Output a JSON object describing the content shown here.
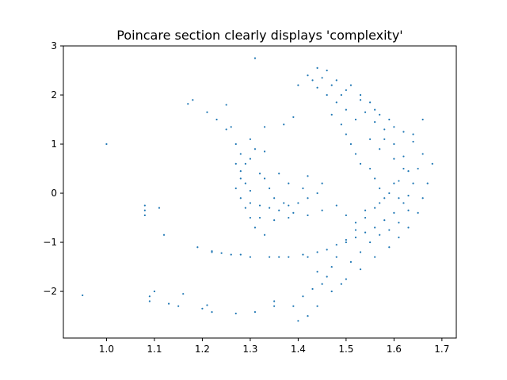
{
  "chart_data": {
    "type": "scatter",
    "title": "Poincare section clearly displays 'complexity'",
    "xlabel": "",
    "ylabel": "",
    "xlim": [
      0.91,
      1.73
    ],
    "ylim": [
      -2.95,
      3.0
    ],
    "x_ticks": [
      1.0,
      1.1,
      1.2,
      1.3,
      1.4,
      1.5,
      1.6,
      1.7
    ],
    "x_tick_labels": [
      "1.0",
      "1.1",
      "1.2",
      "1.3",
      "1.4",
      "1.5",
      "1.6",
      "1.7"
    ],
    "y_ticks": [
      -2,
      -1,
      0,
      1,
      2,
      3
    ],
    "y_tick_labels": [
      "−2",
      "−1",
      "0",
      "1",
      "2",
      "3"
    ],
    "grid": false,
    "legend": "none",
    "marker_color": "#1f77b4",
    "points": [
      [
        0.95,
        -2.08
      ],
      [
        1.0,
        1.0
      ],
      [
        1.08,
        -0.25
      ],
      [
        1.08,
        -0.35
      ],
      [
        1.08,
        -0.45
      ],
      [
        1.09,
        -2.1
      ],
      [
        1.09,
        -2.2
      ],
      [
        1.1,
        -2.0
      ],
      [
        1.11,
        -0.3
      ],
      [
        1.12,
        -0.85
      ],
      [
        1.13,
        -2.25
      ],
      [
        1.15,
        -2.3
      ],
      [
        1.16,
        -2.05
      ],
      [
        1.17,
        1.82
      ],
      [
        1.18,
        1.9
      ],
      [
        1.19,
        -1.1
      ],
      [
        1.2,
        -2.35
      ],
      [
        1.21,
        -2.28
      ],
      [
        1.21,
        1.65
      ],
      [
        1.22,
        -1.2
      ],
      [
        1.23,
        1.5
      ],
      [
        1.25,
        1.3
      ],
      [
        1.26,
        1.35
      ],
      [
        1.25,
        1.8
      ],
      [
        1.27,
        1.0
      ],
      [
        1.28,
        0.8
      ],
      [
        1.29,
        0.6
      ],
      [
        1.28,
        0.3
      ],
      [
        1.27,
        0.1
      ],
      [
        1.29,
        -0.3
      ],
      [
        1.3,
        -0.5
      ],
      [
        1.31,
        -0.7
      ],
      [
        1.33,
        -0.85
      ],
      [
        1.31,
        0.9
      ],
      [
        1.33,
        0.85
      ],
      [
        1.32,
        0.4
      ],
      [
        1.34,
        0.1
      ],
      [
        1.35,
        -0.1
      ],
      [
        1.37,
        -0.2
      ],
      [
        1.38,
        -0.25
      ],
      [
        1.4,
        -0.2
      ],
      [
        1.42,
        -0.1
      ],
      [
        1.44,
        0.0
      ],
      [
        1.42,
        0.35
      ],
      [
        1.45,
        0.2
      ],
      [
        1.34,
        -1.3
      ],
      [
        1.36,
        -1.3
      ],
      [
        1.38,
        -1.3
      ],
      [
        1.41,
        -1.25
      ],
      [
        1.44,
        -1.2
      ],
      [
        1.46,
        -1.15
      ],
      [
        1.48,
        -1.05
      ],
      [
        1.5,
        -0.95
      ],
      [
        1.52,
        -0.9
      ],
      [
        1.54,
        -0.8
      ],
      [
        1.56,
        -0.7
      ],
      [
        1.58,
        -0.55
      ],
      [
        1.6,
        -0.4
      ],
      [
        1.62,
        -0.2
      ],
      [
        1.63,
        -0.05
      ],
      [
        1.64,
        0.2
      ],
      [
        1.65,
        0.5
      ],
      [
        1.66,
        0.8
      ],
      [
        1.64,
        1.05
      ],
      [
        1.62,
        1.25
      ],
      [
        1.59,
        1.5
      ],
      [
        1.56,
        1.7
      ],
      [
        1.53,
        1.9
      ],
      [
        1.5,
        2.1
      ],
      [
        1.48,
        2.3
      ],
      [
        1.46,
        2.5
      ],
      [
        1.44,
        2.55
      ],
      [
        1.42,
        2.4
      ],
      [
        1.4,
        2.2
      ],
      [
        1.47,
        1.6
      ],
      [
        1.49,
        1.4
      ],
      [
        1.5,
        1.2
      ],
      [
        1.51,
        1.0
      ],
      [
        1.52,
        0.8
      ],
      [
        1.53,
        0.6
      ],
      [
        1.55,
        0.5
      ],
      [
        1.56,
        0.3
      ],
      [
        1.57,
        0.1
      ],
      [
        1.58,
        -0.1
      ],
      [
        1.56,
        -0.3
      ],
      [
        1.54,
        -0.5
      ],
      [
        1.52,
        -0.75
      ],
      [
        1.5,
        -1.0
      ],
      [
        1.48,
        -1.3
      ],
      [
        1.47,
        -1.5
      ],
      [
        1.46,
        -1.7
      ],
      [
        1.45,
        -1.85
      ],
      [
        1.43,
        -1.95
      ],
      [
        1.41,
        -2.1
      ],
      [
        1.39,
        -2.3
      ],
      [
        1.4,
        -2.6
      ],
      [
        1.42,
        -2.5
      ],
      [
        1.44,
        -2.3
      ],
      [
        1.47,
        -2.0
      ],
      [
        1.5,
        -1.75
      ],
      [
        1.53,
        -1.55
      ],
      [
        1.56,
        -1.3
      ],
      [
        1.59,
        -1.1
      ],
      [
        1.61,
        -0.9
      ],
      [
        1.63,
        -0.7
      ],
      [
        1.65,
        -0.4
      ],
      [
        1.66,
        -0.1
      ],
      [
        1.67,
        0.2
      ],
      [
        1.68,
        0.6
      ],
      [
        1.66,
        1.5
      ],
      [
        1.55,
        1.1
      ],
      [
        1.57,
        0.9
      ],
      [
        1.6,
        0.7
      ],
      [
        1.62,
        0.5
      ],
      [
        1.6,
        0.2
      ],
      [
        1.61,
        -0.1
      ],
      [
        1.63,
        -0.35
      ],
      [
        1.58,
        1.3
      ],
      [
        1.49,
        2.0
      ],
      [
        1.47,
        2.2
      ],
      [
        1.3,
        -1.3
      ],
      [
        1.28,
        -1.25
      ],
      [
        1.26,
        -1.25
      ],
      [
        1.24,
        -1.22
      ],
      [
        1.22,
        -1.18
      ],
      [
        1.32,
        -0.5
      ],
      [
        1.35,
        -0.55
      ],
      [
        1.38,
        -0.5
      ],
      [
        1.42,
        -0.45
      ],
      [
        1.45,
        -0.35
      ],
      [
        1.48,
        -0.25
      ],
      [
        1.3,
        0.05
      ],
      [
        1.33,
        0.3
      ],
      [
        1.36,
        0.4
      ],
      [
        1.38,
        0.2
      ],
      [
        1.41,
        0.1
      ],
      [
        1.3,
        1.1
      ],
      [
        1.33,
        1.35
      ],
      [
        1.37,
        1.4
      ],
      [
        1.39,
        1.55
      ],
      [
        1.35,
        -2.2
      ],
      [
        1.31,
        2.75
      ],
      [
        1.22,
        -2.42
      ],
      [
        1.27,
        -2.45
      ],
      [
        1.31,
        -2.42
      ],
      [
        1.35,
        -2.3
      ],
      [
        1.42,
        -1.3
      ],
      [
        1.44,
        -1.6
      ],
      [
        1.49,
        -1.85
      ],
      [
        1.51,
        -1.4
      ],
      [
        1.53,
        -1.2
      ],
      [
        1.55,
        -1.0
      ],
      [
        1.57,
        -0.85
      ],
      [
        1.59,
        -0.75
      ],
      [
        1.61,
        -0.6
      ],
      [
        1.52,
        -0.6
      ],
      [
        1.5,
        -0.45
      ],
      [
        1.54,
        -0.35
      ],
      [
        1.57,
        -0.2
      ],
      [
        1.59,
        0.0
      ],
      [
        1.61,
        0.25
      ],
      [
        1.63,
        0.45
      ],
      [
        1.62,
        0.75
      ],
      [
        1.6,
        1.0
      ],
      [
        1.58,
        1.1
      ],
      [
        1.56,
        1.45
      ],
      [
        1.54,
        1.65
      ],
      [
        1.52,
        1.5
      ],
      [
        1.5,
        1.7
      ],
      [
        1.48,
        1.85
      ],
      [
        1.46,
        2.0
      ],
      [
        1.44,
        2.15
      ],
      [
        1.43,
        2.3
      ],
      [
        1.45,
        2.35
      ],
      [
        1.51,
        2.2
      ],
      [
        1.53,
        2.0
      ],
      [
        1.55,
        1.85
      ],
      [
        1.57,
        1.6
      ],
      [
        1.6,
        1.35
      ],
      [
        1.64,
        1.2
      ],
      [
        1.27,
        0.6
      ],
      [
        1.28,
        0.45
      ],
      [
        1.3,
        0.7
      ],
      [
        1.29,
        0.2
      ],
      [
        1.28,
        -0.1
      ],
      [
        1.3,
        -0.2
      ],
      [
        1.32,
        -0.25
      ],
      [
        1.34,
        -0.3
      ],
      [
        1.36,
        -0.35
      ],
      [
        1.39,
        -0.4
      ]
    ]
  }
}
